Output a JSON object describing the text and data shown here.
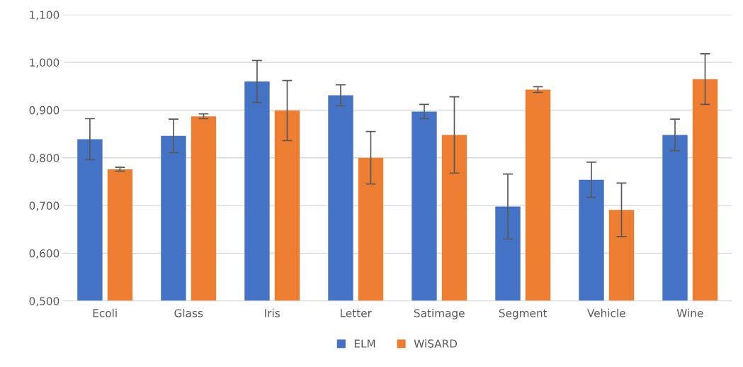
{
  "chart_data": {
    "type": "bar",
    "categories": [
      "Ecoli",
      "Glass",
      "Iris",
      "Letter",
      "Satimage",
      "Segment",
      "Vehicle",
      "Wine"
    ],
    "series": [
      {
        "name": "ELM",
        "color": "#4472c4",
        "values": [
          0.839,
          0.846,
          0.96,
          0.931,
          0.897,
          0.698,
          0.754,
          0.848
        ],
        "errors": [
          0.043,
          0.035,
          0.044,
          0.022,
          0.015,
          0.068,
          0.037,
          0.033
        ]
      },
      {
        "name": "WiSARD",
        "color": "#ed7d31",
        "values": [
          0.776,
          0.887,
          0.899,
          0.8,
          0.848,
          0.943,
          0.691,
          0.965
        ],
        "errors": [
          0.004,
          0.005,
          0.063,
          0.055,
          0.08,
          0.006,
          0.056,
          0.053
        ]
      }
    ],
    "ylim": [
      0.5,
      1.1
    ],
    "yticks": [
      {
        "value": 0.5,
        "label": "0,500"
      },
      {
        "value": 0.6,
        "label": "0,600"
      },
      {
        "value": 0.7,
        "label": "0,700"
      },
      {
        "value": 0.8,
        "label": "0,800"
      },
      {
        "value": 0.9,
        "label": "0,900"
      },
      {
        "value": 1.0,
        "label": "1,000"
      },
      {
        "value": 1.1,
        "label": "1,100"
      }
    ],
    "grid": "y",
    "legend": "bottom"
  }
}
